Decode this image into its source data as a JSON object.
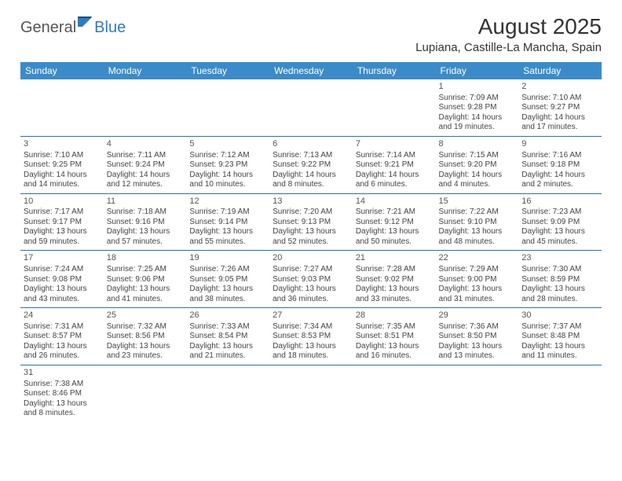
{
  "logo": {
    "part1": "General",
    "part2": "Blue"
  },
  "title": "August 2025",
  "location": "Lupiana, Castille-La Mancha, Spain",
  "colors": {
    "header_bg": "#3b8bc9",
    "header_text": "#ffffff",
    "row_divider": "#2f6fa8",
    "text": "#444444",
    "logo_blue": "#2f7bbf"
  },
  "fonts": {
    "title_size": 28,
    "location_size": 15,
    "header_size": 12,
    "cell_size": 10,
    "daynum_size": 11
  },
  "dayHeaders": [
    "Sunday",
    "Monday",
    "Tuesday",
    "Wednesday",
    "Thursday",
    "Friday",
    "Saturday"
  ],
  "weeks": [
    [
      null,
      null,
      null,
      null,
      null,
      {
        "n": "1",
        "sr": "Sunrise: 7:09 AM",
        "ss": "Sunset: 9:28 PM",
        "d1": "Daylight: 14 hours",
        "d2": "and 19 minutes."
      },
      {
        "n": "2",
        "sr": "Sunrise: 7:10 AM",
        "ss": "Sunset: 9:27 PM",
        "d1": "Daylight: 14 hours",
        "d2": "and 17 minutes."
      }
    ],
    [
      {
        "n": "3",
        "sr": "Sunrise: 7:10 AM",
        "ss": "Sunset: 9:25 PM",
        "d1": "Daylight: 14 hours",
        "d2": "and 14 minutes."
      },
      {
        "n": "4",
        "sr": "Sunrise: 7:11 AM",
        "ss": "Sunset: 9:24 PM",
        "d1": "Daylight: 14 hours",
        "d2": "and 12 minutes."
      },
      {
        "n": "5",
        "sr": "Sunrise: 7:12 AM",
        "ss": "Sunset: 9:23 PM",
        "d1": "Daylight: 14 hours",
        "d2": "and 10 minutes."
      },
      {
        "n": "6",
        "sr": "Sunrise: 7:13 AM",
        "ss": "Sunset: 9:22 PM",
        "d1": "Daylight: 14 hours",
        "d2": "and 8 minutes."
      },
      {
        "n": "7",
        "sr": "Sunrise: 7:14 AM",
        "ss": "Sunset: 9:21 PM",
        "d1": "Daylight: 14 hours",
        "d2": "and 6 minutes."
      },
      {
        "n": "8",
        "sr": "Sunrise: 7:15 AM",
        "ss": "Sunset: 9:20 PM",
        "d1": "Daylight: 14 hours",
        "d2": "and 4 minutes."
      },
      {
        "n": "9",
        "sr": "Sunrise: 7:16 AM",
        "ss": "Sunset: 9:18 PM",
        "d1": "Daylight: 14 hours",
        "d2": "and 2 minutes."
      }
    ],
    [
      {
        "n": "10",
        "sr": "Sunrise: 7:17 AM",
        "ss": "Sunset: 9:17 PM",
        "d1": "Daylight: 13 hours",
        "d2": "and 59 minutes."
      },
      {
        "n": "11",
        "sr": "Sunrise: 7:18 AM",
        "ss": "Sunset: 9:16 PM",
        "d1": "Daylight: 13 hours",
        "d2": "and 57 minutes."
      },
      {
        "n": "12",
        "sr": "Sunrise: 7:19 AM",
        "ss": "Sunset: 9:14 PM",
        "d1": "Daylight: 13 hours",
        "d2": "and 55 minutes."
      },
      {
        "n": "13",
        "sr": "Sunrise: 7:20 AM",
        "ss": "Sunset: 9:13 PM",
        "d1": "Daylight: 13 hours",
        "d2": "and 52 minutes."
      },
      {
        "n": "14",
        "sr": "Sunrise: 7:21 AM",
        "ss": "Sunset: 9:12 PM",
        "d1": "Daylight: 13 hours",
        "d2": "and 50 minutes."
      },
      {
        "n": "15",
        "sr": "Sunrise: 7:22 AM",
        "ss": "Sunset: 9:10 PM",
        "d1": "Daylight: 13 hours",
        "d2": "and 48 minutes."
      },
      {
        "n": "16",
        "sr": "Sunrise: 7:23 AM",
        "ss": "Sunset: 9:09 PM",
        "d1": "Daylight: 13 hours",
        "d2": "and 45 minutes."
      }
    ],
    [
      {
        "n": "17",
        "sr": "Sunrise: 7:24 AM",
        "ss": "Sunset: 9:08 PM",
        "d1": "Daylight: 13 hours",
        "d2": "and 43 minutes."
      },
      {
        "n": "18",
        "sr": "Sunrise: 7:25 AM",
        "ss": "Sunset: 9:06 PM",
        "d1": "Daylight: 13 hours",
        "d2": "and 41 minutes."
      },
      {
        "n": "19",
        "sr": "Sunrise: 7:26 AM",
        "ss": "Sunset: 9:05 PM",
        "d1": "Daylight: 13 hours",
        "d2": "and 38 minutes."
      },
      {
        "n": "20",
        "sr": "Sunrise: 7:27 AM",
        "ss": "Sunset: 9:03 PM",
        "d1": "Daylight: 13 hours",
        "d2": "and 36 minutes."
      },
      {
        "n": "21",
        "sr": "Sunrise: 7:28 AM",
        "ss": "Sunset: 9:02 PM",
        "d1": "Daylight: 13 hours",
        "d2": "and 33 minutes."
      },
      {
        "n": "22",
        "sr": "Sunrise: 7:29 AM",
        "ss": "Sunset: 9:00 PM",
        "d1": "Daylight: 13 hours",
        "d2": "and 31 minutes."
      },
      {
        "n": "23",
        "sr": "Sunrise: 7:30 AM",
        "ss": "Sunset: 8:59 PM",
        "d1": "Daylight: 13 hours",
        "d2": "and 28 minutes."
      }
    ],
    [
      {
        "n": "24",
        "sr": "Sunrise: 7:31 AM",
        "ss": "Sunset: 8:57 PM",
        "d1": "Daylight: 13 hours",
        "d2": "and 26 minutes."
      },
      {
        "n": "25",
        "sr": "Sunrise: 7:32 AM",
        "ss": "Sunset: 8:56 PM",
        "d1": "Daylight: 13 hours",
        "d2": "and 23 minutes."
      },
      {
        "n": "26",
        "sr": "Sunrise: 7:33 AM",
        "ss": "Sunset: 8:54 PM",
        "d1": "Daylight: 13 hours",
        "d2": "and 21 minutes."
      },
      {
        "n": "27",
        "sr": "Sunrise: 7:34 AM",
        "ss": "Sunset: 8:53 PM",
        "d1": "Daylight: 13 hours",
        "d2": "and 18 minutes."
      },
      {
        "n": "28",
        "sr": "Sunrise: 7:35 AM",
        "ss": "Sunset: 8:51 PM",
        "d1": "Daylight: 13 hours",
        "d2": "and 16 minutes."
      },
      {
        "n": "29",
        "sr": "Sunrise: 7:36 AM",
        "ss": "Sunset: 8:50 PM",
        "d1": "Daylight: 13 hours",
        "d2": "and 13 minutes."
      },
      {
        "n": "30",
        "sr": "Sunrise: 7:37 AM",
        "ss": "Sunset: 8:48 PM",
        "d1": "Daylight: 13 hours",
        "d2": "and 11 minutes."
      }
    ],
    [
      {
        "n": "31",
        "sr": "Sunrise: 7:38 AM",
        "ss": "Sunset: 8:46 PM",
        "d1": "Daylight: 13 hours",
        "d2": "and 8 minutes."
      },
      null,
      null,
      null,
      null,
      null,
      null
    ]
  ]
}
